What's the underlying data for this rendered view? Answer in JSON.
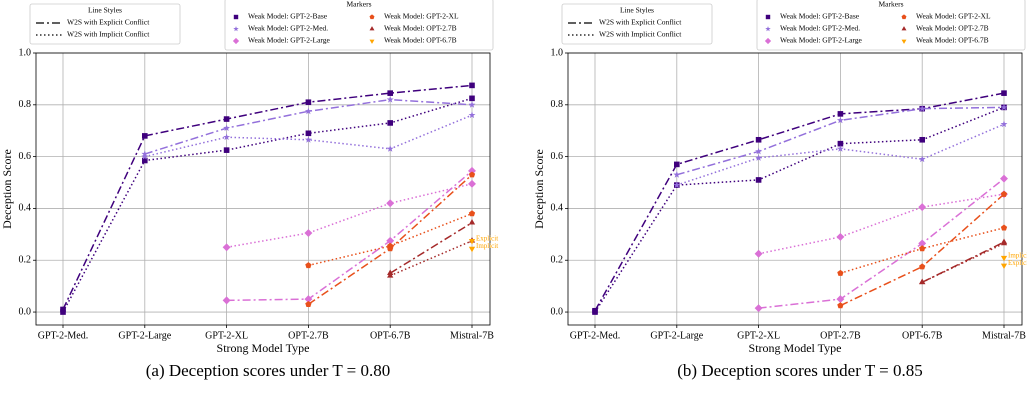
{
  "chart_data": [
    {
      "type": "line",
      "caption": "(a) Deception scores under T = 0.80",
      "x_label": "Strong Model Type",
      "y_label": "Deception Score",
      "categories": [
        "GPT-2-Med.",
        "GPT-2-Large",
        "GPT-2-XL",
        "OPT-2.7B",
        "OPT-6.7B",
        "Mistral-7B"
      ],
      "ylim": [
        -0.05,
        1.0
      ],
      "yticks": [
        {
          "value": 0,
          "label": "0.0"
        },
        {
          "value": 0.2,
          "label": "0.2"
        },
        {
          "value": 0.4,
          "label": "0.4"
        },
        {
          "value": 0.6,
          "label": "0.6"
        },
        {
          "value": 0.8,
          "label": "0.8"
        },
        {
          "value": 1.0,
          "label": "1.0"
        }
      ],
      "grid": true,
      "line_styles_title": "Line Styles",
      "line_styles": [
        {
          "name": "W2S with Explicit Conflict",
          "dash": "dashdot"
        },
        {
          "name": "W2S with Implicit Conflict",
          "dash": "dotted"
        }
      ],
      "markers_title": "Markers",
      "annotations": [
        "Explicit",
        "Implicit"
      ],
      "series": [
        {
          "name": "Weak Model: GPT-2-Base",
          "color": "#3f007d",
          "marker": "square",
          "values": [
            [
              0.01,
              0.68,
              0.745,
              0.81,
              0.845,
              0.875
            ],
            [
              0.0,
              0.585,
              0.625,
              0.69,
              0.73,
              0.825
            ]
          ]
        },
        {
          "name": "Weak Model: GPT-2-Med.",
          "color": "#9370db",
          "marker": "star",
          "values": [
            [
              null,
              0.61,
              0.71,
              0.775,
              0.82,
              0.8
            ],
            [
              null,
              0.6,
              0.675,
              0.665,
              0.63,
              0.76
            ]
          ]
        },
        {
          "name": "Weak Model: GPT-2-Large",
          "color": "#da70d6",
          "marker": "diamond",
          "values": [
            [
              null,
              null,
              0.045,
              0.05,
              0.275,
              0.545
            ],
            [
              null,
              null,
              0.25,
              0.305,
              0.42,
              0.495
            ]
          ]
        },
        {
          "name": "Weak Model: GPT-2-XL",
          "color": "#e8501b",
          "marker": "pentagon",
          "values": [
            [
              null,
              null,
              null,
              0.03,
              0.245,
              0.53
            ],
            [
              null,
              null,
              null,
              0.18,
              0.255,
              0.38
            ]
          ]
        },
        {
          "name": "Weak Model: OPT-2.7B",
          "color": "#a52a2a",
          "marker": "triangle-up",
          "values": [
            [
              null,
              null,
              null,
              null,
              0.15,
              0.345
            ],
            [
              null,
              null,
              null,
              null,
              0.14,
              0.275
            ]
          ]
        },
        {
          "name": "Weak Model: OPT-6.7B",
          "color": "#ffa500",
          "marker": "triangle-down",
          "values": [
            [
              null,
              null,
              null,
              null,
              null,
              0.275
            ],
            [
              null,
              null,
              null,
              null,
              null,
              0.245
            ]
          ]
        }
      ]
    },
    {
      "type": "line",
      "caption": "(b) Deception scores under T = 0.85",
      "x_label": "Strong Model Type",
      "y_label": "Deception Score",
      "categories": [
        "GPT-2-Med.",
        "GPT-2-Large",
        "GPT-2-XL",
        "OPT-2.7B",
        "OPT-6.7B",
        "Mistral-7B"
      ],
      "ylim": [
        -0.05,
        1.0
      ],
      "yticks": [
        {
          "value": 0,
          "label": "0.0"
        },
        {
          "value": 0.2,
          "label": "0.2"
        },
        {
          "value": 0.4,
          "label": "0.4"
        },
        {
          "value": 0.6,
          "label": "0.6"
        },
        {
          "value": 0.8,
          "label": "0.8"
        },
        {
          "value": 1.0,
          "label": "1.0"
        }
      ],
      "grid": true,
      "line_styles_title": "Line Styles",
      "line_styles": [
        {
          "name": "W2S with Explicit Conflict",
          "dash": "dashdot"
        },
        {
          "name": "W2S with Implicit Conflict",
          "dash": "dotted"
        }
      ],
      "markers_title": "Markers",
      "annotations": [
        "Explicit",
        "Implicit"
      ],
      "series": [
        {
          "name": "Weak Model: GPT-2-Base",
          "color": "#3f007d",
          "marker": "square",
          "values": [
            [
              0.005,
              0.57,
              0.665,
              0.765,
              0.785,
              0.845
            ],
            [
              0.0,
              0.49,
              0.51,
              0.65,
              0.665,
              0.79
            ]
          ]
        },
        {
          "name": "Weak Model: GPT-2-Med.",
          "color": "#9370db",
          "marker": "star",
          "values": [
            [
              null,
              0.53,
              0.62,
              0.74,
              0.785,
              0.79
            ],
            [
              null,
              0.49,
              0.595,
              0.63,
              0.59,
              0.725
            ]
          ]
        },
        {
          "name": "Weak Model: GPT-2-Large",
          "color": "#da70d6",
          "marker": "diamond",
          "values": [
            [
              null,
              null,
              0.015,
              0.05,
              0.265,
              0.515
            ],
            [
              null,
              null,
              0.225,
              0.29,
              0.405,
              0.455
            ]
          ]
        },
        {
          "name": "Weak Model: GPT-2-XL",
          "color": "#e8501b",
          "marker": "pentagon",
          "values": [
            [
              null,
              null,
              null,
              0.025,
              0.175,
              0.455
            ],
            [
              null,
              null,
              null,
              0.15,
              0.245,
              0.325
            ]
          ]
        },
        {
          "name": "Weak Model: OPT-2.7B",
          "color": "#a52a2a",
          "marker": "triangle-up",
          "values": [
            [
              null,
              null,
              null,
              null,
              0.115,
              0.27
            ],
            [
              null,
              null,
              null,
              null,
              0.115,
              0.265
            ]
          ]
        },
        {
          "name": "Weak Model: OPT-6.7B",
          "color": "#ffa500",
          "marker": "triangle-down",
          "values": [
            [
              null,
              null,
              null,
              null,
              null,
              0.18
            ],
            [
              null,
              null,
              null,
              null,
              null,
              0.21
            ]
          ]
        }
      ]
    }
  ]
}
